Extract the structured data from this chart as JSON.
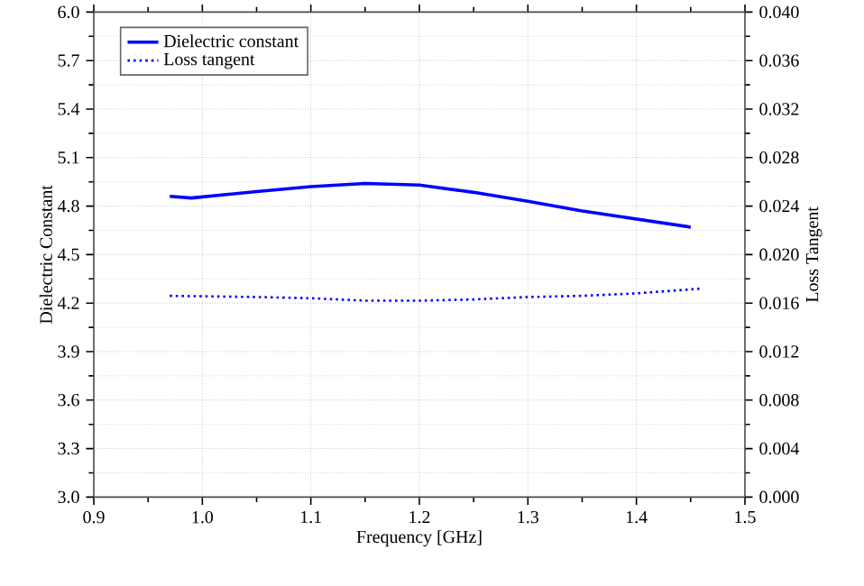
{
  "chart_data": {
    "type": "line",
    "xlabel": "Frequency [GHz]",
    "ylabel": "Dielectric Constant",
    "y2label": "Loss Tangent",
    "xlim": [
      0.9,
      1.5
    ],
    "xticks": [
      {
        "value": 0.9,
        "label": "0.9"
      },
      {
        "value": 1.0,
        "label": "1.0"
      },
      {
        "value": 1.1,
        "label": "1.1"
      },
      {
        "value": 1.2,
        "label": "1.2"
      },
      {
        "value": 1.3,
        "label": "1.3"
      },
      {
        "value": 1.4,
        "label": "1.4"
      },
      {
        "value": 1.5,
        "label": "1.5"
      }
    ],
    "ylim": [
      3.0,
      6.0
    ],
    "yticks": [
      {
        "value": 3.0,
        "label": "3.0"
      },
      3.3,
      3.6,
      3.9,
      4.2,
      4.5,
      4.8,
      5.1,
      5.4,
      5.7,
      {
        "value": 6.0,
        "label": "6.0"
      }
    ],
    "y2lim": [
      0.0,
      0.04
    ],
    "y2ticks": [
      {
        "value": 0.0,
        "label": "0.000"
      },
      {
        "value": 0.004,
        "label": "0.004"
      },
      {
        "value": 0.008,
        "label": "0.008"
      },
      {
        "value": 0.012,
        "label": "0.012"
      },
      {
        "value": 0.016,
        "label": "0.016"
      },
      {
        "value": 0.02,
        "label": "0.020"
      },
      {
        "value": 0.024,
        "label": "0.024"
      },
      {
        "value": 0.028,
        "label": "0.028"
      },
      {
        "value": 0.032,
        "label": "0.032"
      },
      {
        "value": 0.036,
        "label": "0.036"
      },
      {
        "value": 0.04,
        "label": "0.040"
      }
    ],
    "grid": true,
    "legend": "top left",
    "series": [
      {
        "name": "Dielectric constant",
        "color": "#0000ff",
        "line_style": "solid",
        "x": [
          0.97,
          0.99,
          1.05,
          1.1,
          1.15,
          1.2,
          1.25,
          1.3,
          1.35,
          1.4,
          1.45
        ],
        "values": [
          4.86,
          4.85,
          4.89,
          4.92,
          4.94,
          4.93,
          4.885,
          4.83,
          4.77,
          4.72,
          4.67
        ]
      },
      {
        "name": "Loss tangent",
        "color": "#0000ff",
        "line_style": "dotted",
        "axis": "y2",
        "x": [
          0.97,
          1.05,
          1.1,
          1.15,
          1.2,
          1.25,
          1.3,
          1.35,
          1.4,
          1.46
        ],
        "values": [
          0.0166,
          0.0165,
          0.0164,
          0.0162,
          0.0162,
          0.0163,
          0.0165,
          0.0166,
          0.0168,
          0.0172
        ]
      }
    ]
  }
}
